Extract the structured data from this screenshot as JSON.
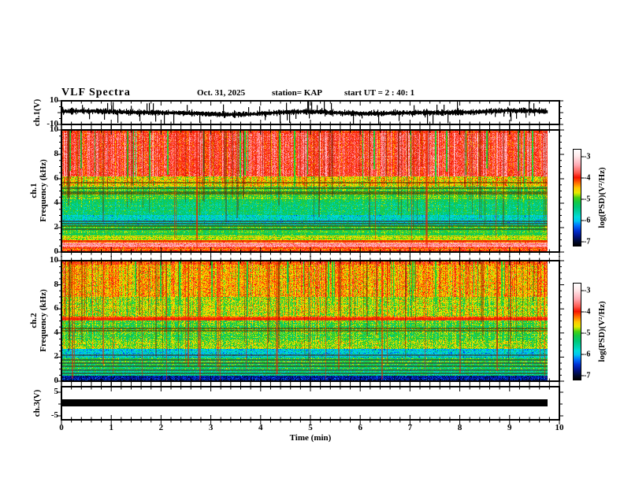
{
  "header": {
    "title": "VLF Spectra",
    "date": "Oct. 31, 2025",
    "station": "station= KAP",
    "start_ut": "start UT =  2 : 40: 1"
  },
  "panels": {
    "wave1": {
      "channel_label": "ch.1(V)",
      "ytick_labels": [
        "10",
        "-10"
      ],
      "ytick_values": [
        10,
        -10
      ]
    },
    "spec1": {
      "channel_label": "ch.1",
      "freq_label": "Frequency (kHz)",
      "ytick_labels": [
        "10",
        "8",
        "6",
        "4",
        "2",
        "0"
      ],
      "ytick_values": [
        10,
        8,
        6,
        4,
        2,
        0
      ]
    },
    "spec2": {
      "channel_label": "ch.2",
      "freq_label": "Frequency (kHz)",
      "ytick_labels": [
        "10",
        "8",
        "6",
        "4",
        "2",
        "0"
      ],
      "ytick_values": [
        10,
        8,
        6,
        4,
        2,
        0
      ]
    },
    "wave3": {
      "channel_label": "ch.3(V)",
      "ytick_labels": [
        "5",
        "-5"
      ],
      "ytick_values": [
        5,
        -5
      ]
    }
  },
  "xaxis": {
    "label": "Time (min)",
    "tick_labels": [
      "0",
      "1",
      "2",
      "3",
      "4",
      "5",
      "6",
      "7",
      "8",
      "9",
      "10"
    ],
    "range_min": [
      0,
      10
    ]
  },
  "colorbars": [
    {
      "label": "log(PSD)(V²/Hz)",
      "tick_labels": [
        "-3",
        "-4",
        "-5",
        "-6",
        "-7"
      ]
    },
    {
      "label": "log(PSD)(V²/Hz)",
      "tick_labels": [
        "-3",
        "-4",
        "-5",
        "-6",
        "-7"
      ]
    }
  ],
  "colormap": {
    "value_range": [
      -7,
      -3
    ],
    "tick_fraction_top": 0.074,
    "tick_fraction_bottom": 0.959,
    "bar_fraction_stops": [
      [
        0.0,
        "#ffffff"
      ],
      [
        0.07,
        "#ffe8ea"
      ],
      [
        0.16,
        "#ffaab4"
      ],
      [
        0.24,
        "#ff5a50"
      ],
      [
        0.29,
        "#f51400"
      ],
      [
        0.34,
        "#ff6400"
      ],
      [
        0.4,
        "#ffc800"
      ],
      [
        0.45,
        "#e6eb00"
      ],
      [
        0.5,
        "#46d214"
      ],
      [
        0.545,
        "#14c846"
      ],
      [
        0.6,
        "#00c878"
      ],
      [
        0.655,
        "#00d2aa"
      ],
      [
        0.7,
        "#00dcdc"
      ],
      [
        0.74,
        "#00c8f0"
      ],
      [
        0.79,
        "#0073ff"
      ],
      [
        0.845,
        "#002fd2"
      ],
      [
        0.9,
        "#001487"
      ],
      [
        0.955,
        "#000a32"
      ],
      [
        1.0,
        "#000000"
      ]
    ]
  },
  "chart_data": [
    {
      "type": "line",
      "panel": "ch1-waveform",
      "ylabel": "ch.1(V)",
      "xlim_min": [
        0,
        10
      ],
      "ylim_V": [
        -10,
        10
      ],
      "data_end_min": 9.78,
      "seed": 101,
      "description": "broadband noisy VLF time series, ~±3 V envelope with frequent spikes toward ±10 V",
      "envelope_V": 3,
      "spike_V": 9
    },
    {
      "type": "heatmap",
      "panel": "ch1-spectrogram",
      "xlim_min": [
        0,
        10
      ],
      "ylim_kHz": [
        0,
        10
      ],
      "data_end_min": 9.78,
      "value_label": "log(PSD)(V²/Hz)",
      "value_range": [
        -7,
        -3
      ],
      "seed": 202,
      "band_format": [
        "f_hi_kHz",
        "f_lo_kHz",
        "base_logPSD",
        "noise_sigma",
        "row_coherence",
        "col_coherence"
      ],
      "bands": [
        [
          10,
          9.72,
          -3.95,
          0.25,
          0,
          0.6
        ],
        [
          9.72,
          6.2,
          -3.8,
          0.3,
          0.1,
          1
        ],
        [
          6.2,
          5.35,
          -4.55,
          0.4,
          0.2,
          0.8
        ],
        [
          5.35,
          4.35,
          -5.0,
          0.35,
          0.25,
          0.5
        ],
        [
          4.35,
          3.05,
          -5.3,
          0.35,
          0.3,
          0.5
        ],
        [
          3.05,
          2.2,
          -5.7,
          0.4,
          0.35,
          0.4
        ],
        [
          2.2,
          1.35,
          -5.1,
          0.3,
          0.3,
          0.4
        ],
        [
          1.35,
          0.95,
          -4.7,
          0.3,
          0.4,
          0.3
        ],
        [
          0.95,
          0.78,
          -4.35,
          0.3,
          0.5,
          0.3
        ],
        [
          0.78,
          0.42,
          -3.45,
          0.25,
          0.5,
          0.2
        ],
        [
          0.42,
          0.15,
          -4.05,
          0.3,
          0.5,
          0.3
        ],
        [
          0.15,
          0,
          -4.0,
          0.25,
          0.4,
          0.3
        ]
      ],
      "h_lines": [
        {
          "f": 5.75,
          "kind": "dark"
        },
        {
          "f": 5.3,
          "kind": "dark"
        },
        {
          "f": 5.0,
          "kind": "dark"
        },
        {
          "f": 4.85,
          "kind": "dark"
        },
        {
          "f": 2.6,
          "kind": "dark"
        },
        {
          "f": 2.4,
          "kind": "dark"
        },
        {
          "f": 2.2,
          "kind": "dark"
        },
        {
          "f": 1.95,
          "kind": "dark"
        },
        {
          "f": 1.0,
          "kind": "red"
        }
      ],
      "green_stripe_prob": 0.05,
      "stripe_bottom_kHz": 5.3,
      "dark_streaks": 80,
      "red_streaks": 10
    },
    {
      "type": "heatmap",
      "panel": "ch2-spectrogram",
      "xlim_min": [
        0,
        10
      ],
      "ylim_kHz": [
        0,
        10
      ],
      "data_end_min": 9.78,
      "value_label": "log(PSD)(V²/Hz)",
      "value_range": [
        -7,
        -3
      ],
      "seed": 303,
      "band_format": [
        "f_hi_kHz",
        "f_lo_kHz",
        "base_logPSD",
        "noise_sigma",
        "row_coherence",
        "col_coherence"
      ],
      "bands": [
        [
          10,
          9.7,
          -4.1,
          0.3,
          0,
          0.6
        ],
        [
          9.7,
          7,
          -4.4,
          0.4,
          0.1,
          0.9
        ],
        [
          7,
          5.35,
          -4.75,
          0.4,
          0.15,
          0.8
        ],
        [
          5.35,
          5.05,
          -4.1,
          0.25,
          0,
          0.5
        ],
        [
          5.05,
          3.4,
          -5.0,
          0.4,
          0.25,
          0.6
        ],
        [
          3.4,
          2.65,
          -4.85,
          0.4,
          0.3,
          0.5
        ],
        [
          2.65,
          1.95,
          -5.85,
          0.4,
          0.4,
          0.4
        ],
        [
          1.95,
          1,
          -5.25,
          0.4,
          0.55,
          0.4
        ],
        [
          1,
          0.45,
          -5.55,
          0.35,
          0.55,
          0.3
        ],
        [
          0.45,
          0,
          -6.7,
          0.3,
          0.4,
          0.3
        ]
      ],
      "h_lines": [
        {
          "f": 4.45,
          "kind": "dark"
        },
        {
          "f": 4.25,
          "kind": "dark"
        },
        {
          "f": 2.2,
          "kind": "dark"
        },
        {
          "f": 1.8,
          "kind": "dark"
        },
        {
          "f": 1.55,
          "kind": "dark"
        },
        {
          "f": 1.3,
          "kind": "dark"
        },
        {
          "f": 0.95,
          "kind": "dark"
        },
        {
          "f": 0.7,
          "kind": "dark"
        },
        {
          "f": 5.2,
          "kind": "red"
        }
      ],
      "green_stripe_prob": 0.03,
      "stripe_bottom_kHz": 6.2,
      "dark_streaks": 60,
      "red_streaks": 28
    },
    {
      "type": "line",
      "panel": "ch3-waveform",
      "ylabel": "ch.3(V)",
      "xlim_min": [
        0,
        10
      ],
      "ylim_V": [
        -5,
        5
      ],
      "data_end_min": 9.78,
      "description": "clipped/saturated flat trace rendered as a solid black bar",
      "bar_V_range": [
        -0.8,
        2.4
      ]
    }
  ]
}
